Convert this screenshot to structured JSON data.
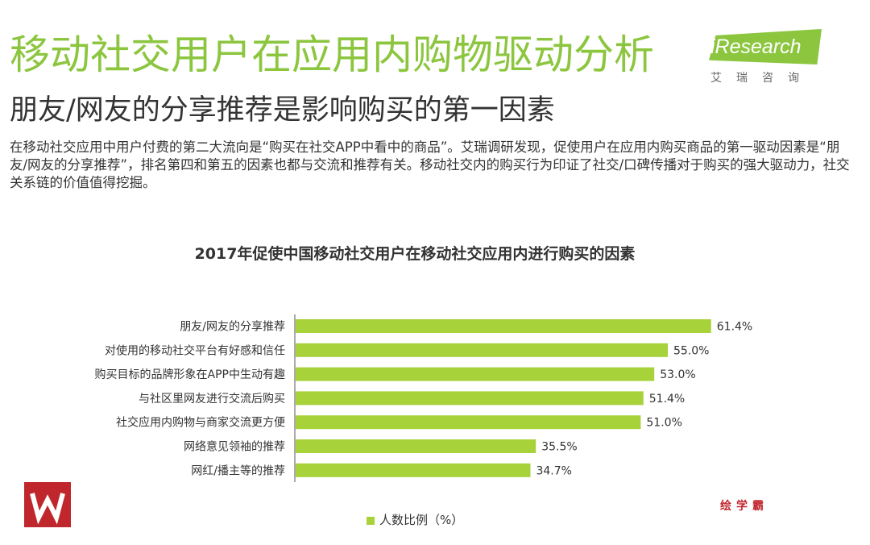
{
  "header": {
    "title": "移动社交用户在应用内购物驱动分析",
    "subtitle": "朋友/网友的分享推荐是影响购买的第一因素",
    "intro": "在移动社交应用中用户付费的第二大流向是“购买在社交APP中看中的商品”。艾瑞调研发现，促使用户在应用内购买商品的第一驱动因素是“朋友/网友的分享推荐”，排名第四和第五的因素也都与交流和推荐有关。移动社交内的购买行为印证了社交/口碑传播对于购买的强大驱动力，社交关系链的价值值得挖掘。"
  },
  "brand": {
    "logo_text": "iResearch",
    "logo_cn": "艾瑞咨询",
    "watermark": "绘学霸",
    "accent_color": "#8cc63f",
    "red_color": "#c0272d"
  },
  "chart_data": {
    "type": "bar",
    "orientation": "horizontal",
    "title": "2017年促使中国移动社交用户在移动社交应用内进行购买的因素",
    "categories": [
      "朋友/网友的分享推荐",
      "对使用的移动社交平台有好感和信任",
      "购买目标的品牌形象在APP中生动有趣",
      "与社区里网友进行交流后购买",
      "社交应用内购物与商家交流更方便",
      "网络意见领袖的推荐",
      "网红/播主等的推荐"
    ],
    "values": [
      61.4,
      55.0,
      53.0,
      51.4,
      51.0,
      35.5,
      34.7
    ],
    "value_labels": [
      "61.4%",
      "55.0%",
      "53.0%",
      "51.4%",
      "51.0%",
      "35.5%",
      "34.7%"
    ],
    "legend": "人数比例（%）",
    "legend_position": "bottom",
    "xlim": [
      0,
      70
    ],
    "grid": false,
    "bar_color": "#a8d23a"
  }
}
